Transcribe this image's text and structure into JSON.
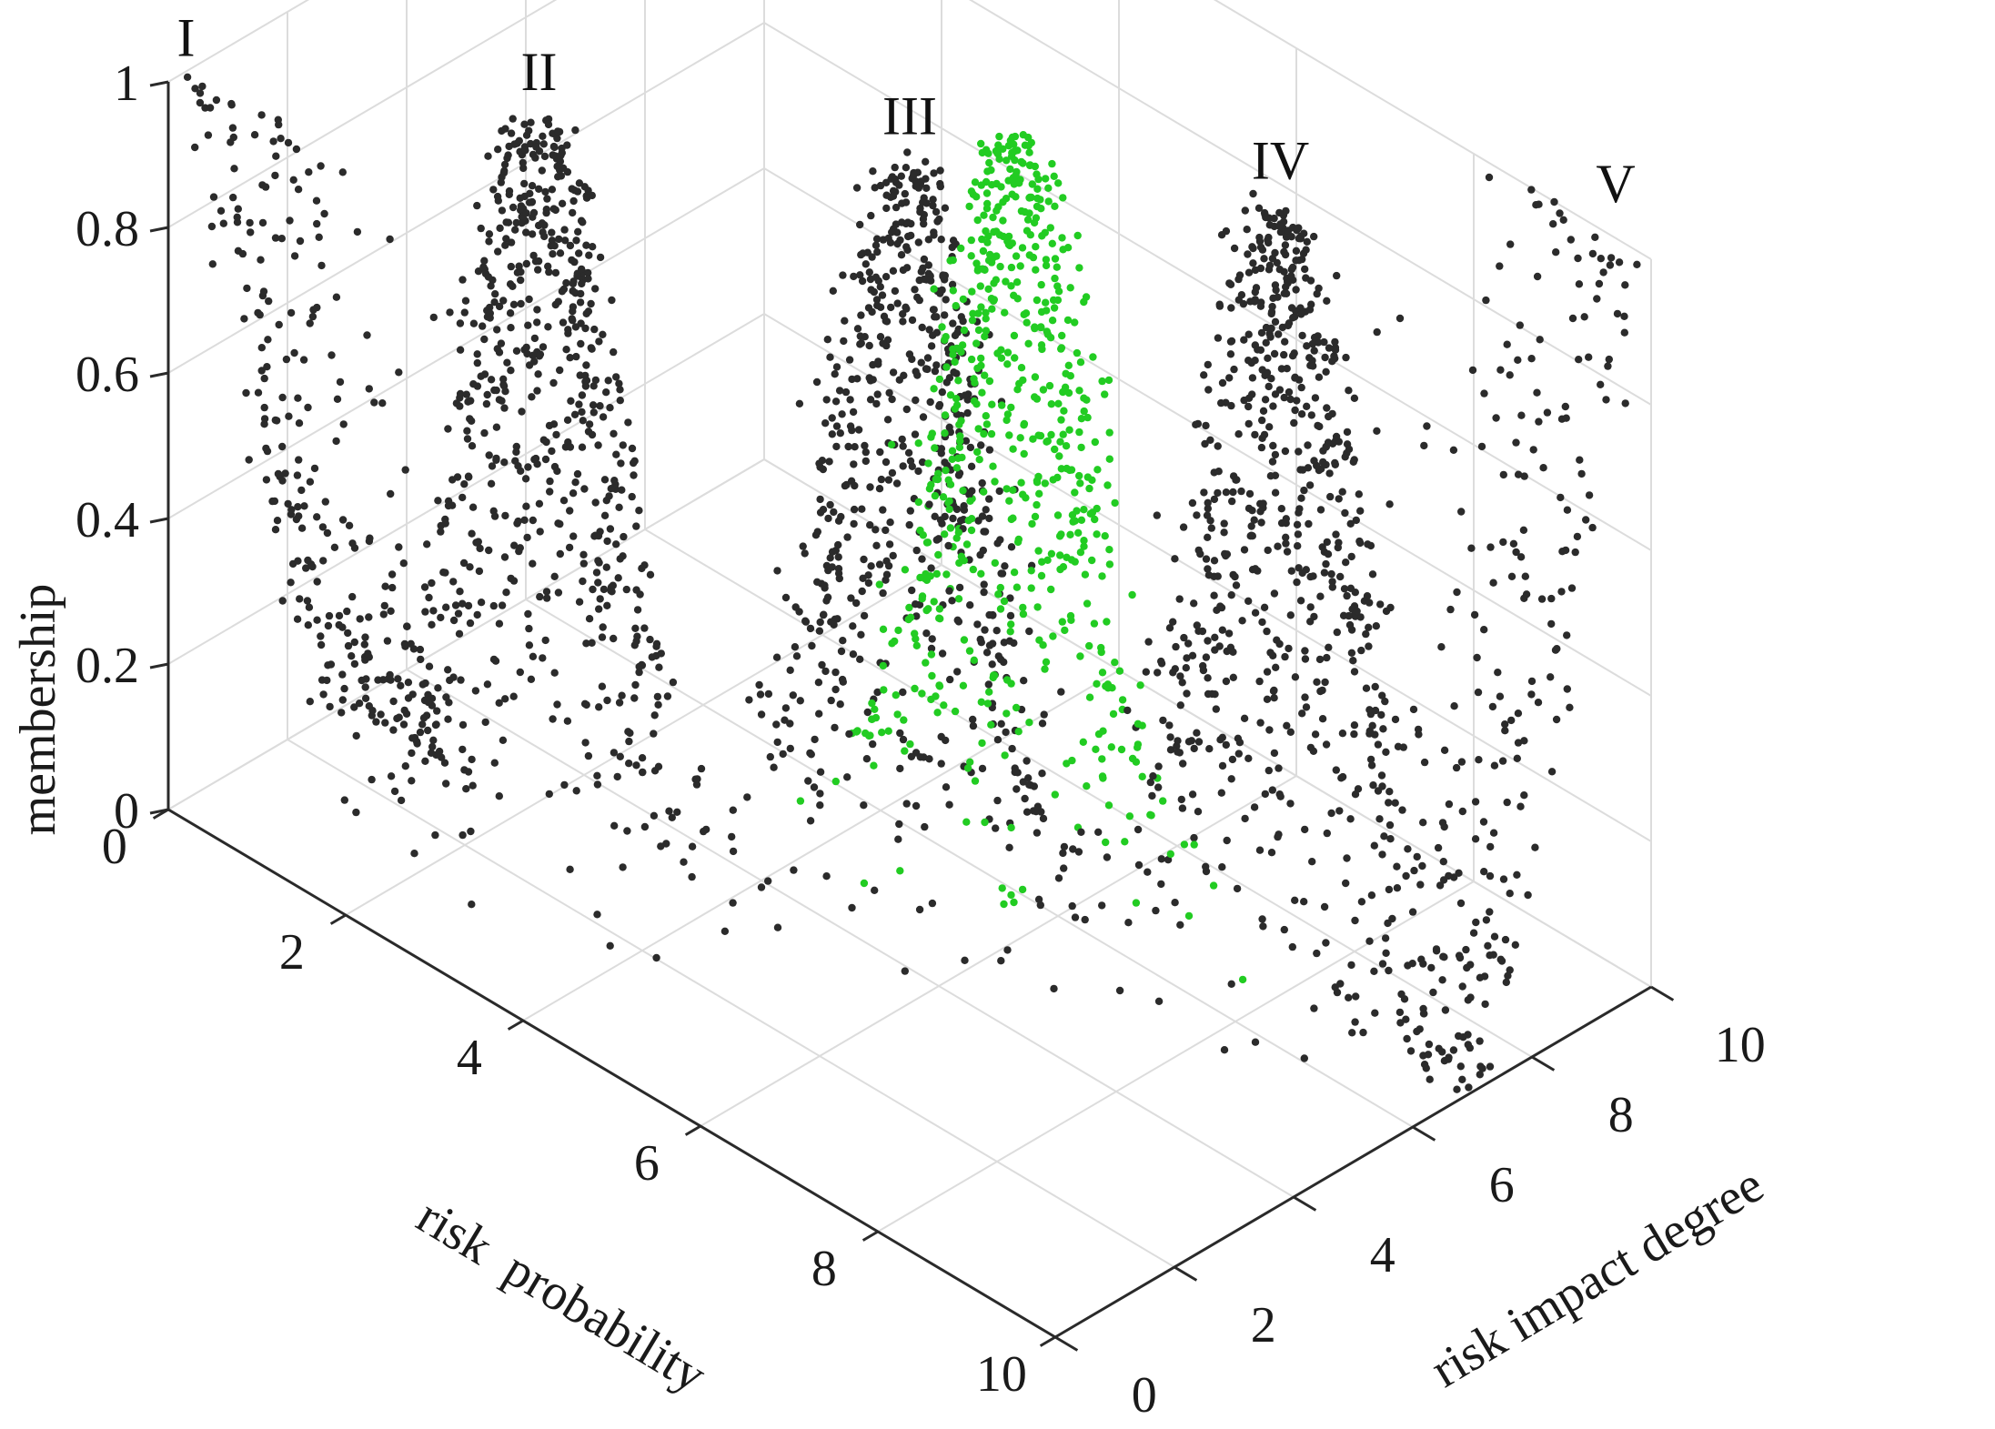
{
  "chart_data": {
    "type": "scatter",
    "subtype": "3d-scatter",
    "title": "",
    "xlabel": "risk  probability",
    "ylabel": "risk impact degree",
    "zlabel": "membership",
    "xlim": [
      0,
      10
    ],
    "ylim": [
      0,
      10
    ],
    "zlim": [
      0,
      1
    ],
    "xticks": [
      "0",
      "2",
      "4",
      "6",
      "8",
      "10"
    ],
    "yticks": [
      "0",
      "2",
      "4",
      "6",
      "8",
      "10"
    ],
    "zticks": [
      "0",
      "0.2",
      "0.4",
      "0.6",
      "0.8",
      "1"
    ],
    "grid": true,
    "colors": {
      "default_points": "#2b2b2b",
      "highlight_points": "#22cc22",
      "grid": "#dcdcdc",
      "axis": "#2a2a2a"
    },
    "annotations": [
      {
        "text": "I",
        "x": 0.2,
        "y": 0.0,
        "z": 1.0
      },
      {
        "text": "II",
        "x": 2.5,
        "y": 2.5,
        "z": 1.0
      },
      {
        "text": "III",
        "x": 5.0,
        "y": 5.0,
        "z": 1.0
      },
      {
        "text": "IV",
        "x": 7.5,
        "y": 7.5,
        "z": 1.0
      },
      {
        "text": "V",
        "x": 9.6,
        "y": 10.0,
        "z": 1.0
      }
    ],
    "series": [
      {
        "label": "I",
        "color": "#2b2b2b",
        "shape": "decreasing",
        "x_peak": 0.0,
        "y_peak": 0.0,
        "count": 260
      },
      {
        "label": "II",
        "color": "#2b2b2b",
        "shape": "gaussian",
        "x_peak": 2.5,
        "y_peak": 2.5,
        "count": 650
      },
      {
        "label": "III",
        "color": "#2b2b2b",
        "shape": "gaussian",
        "x_peak": 5.0,
        "y_peak": 5.0,
        "count": 650
      },
      {
        "label": "",
        "color": "#22cc22",
        "shape": "gaussian",
        "x_peak": 5.3,
        "y_peak": 6.3,
        "count": 620
      },
      {
        "label": "IV",
        "color": "#2b2b2b",
        "shape": "gaussian",
        "x_peak": 7.5,
        "y_peak": 7.5,
        "count": 650
      },
      {
        "label": "V",
        "color": "#2b2b2b",
        "shape": "increasing",
        "x_peak": 10.0,
        "y_peak": 10.0,
        "count": 260
      }
    ]
  }
}
